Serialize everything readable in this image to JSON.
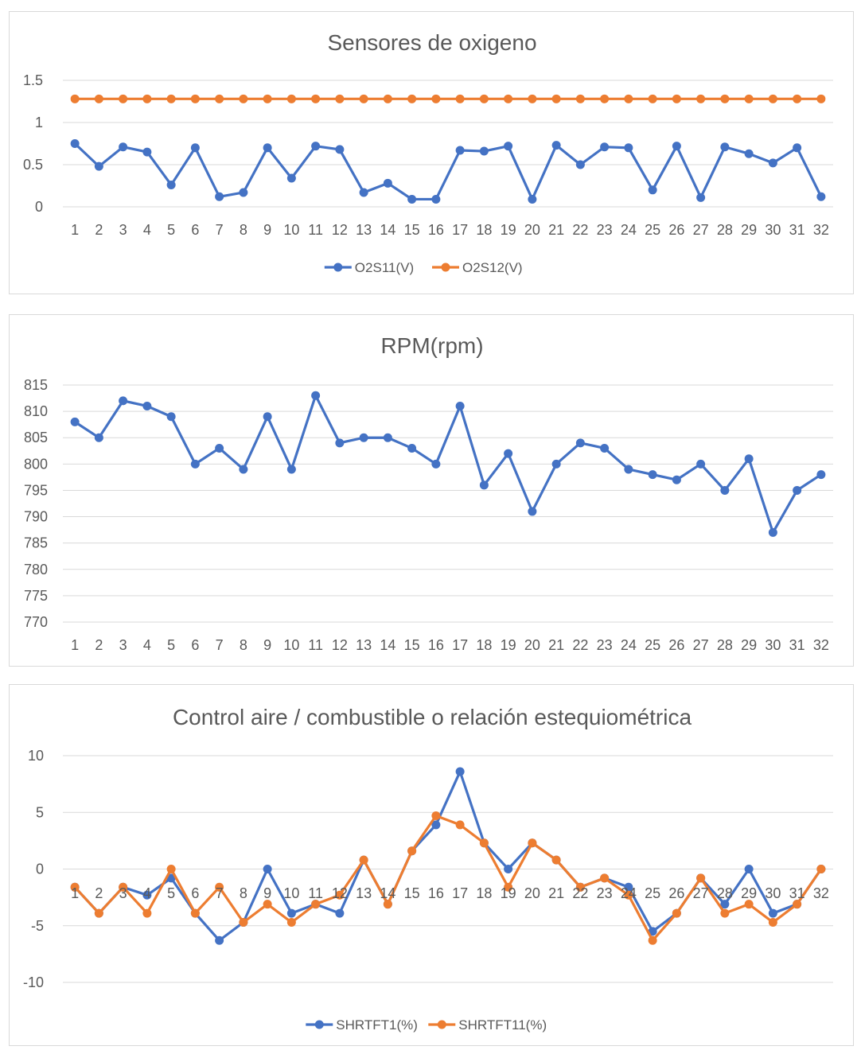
{
  "chart_data": [
    {
      "type": "line",
      "title": "Sensores de oxigeno",
      "categories": [
        "1",
        "2",
        "3",
        "4",
        "5",
        "6",
        "7",
        "8",
        "9",
        "10",
        "11",
        "12",
        "13",
        "14",
        "15",
        "16",
        "17",
        "18",
        "19",
        "20",
        "21",
        "22",
        "23",
        "24",
        "25",
        "26",
        "27",
        "28",
        "29",
        "30",
        "31",
        "32"
      ],
      "yticks": [
        "1.5",
        "1",
        "0.5",
        "0"
      ],
      "ylim": [
        0,
        1.5
      ],
      "grid": true,
      "legend": "bottom",
      "series": [
        {
          "name": "O2S11(V)",
          "color": "#4472c4",
          "values": [
            0.75,
            0.48,
            0.71,
            0.65,
            0.26,
            0.7,
            0.12,
            0.17,
            0.7,
            0.34,
            0.72,
            0.68,
            0.17,
            0.28,
            0.09,
            0.09,
            0.67,
            0.66,
            0.72,
            0.09,
            0.73,
            0.5,
            0.71,
            0.7,
            0.2,
            0.72,
            0.11,
            0.71,
            0.63,
            0.52,
            0.7,
            0.12
          ]
        },
        {
          "name": "O2S12(V)",
          "color": "#ed7d31",
          "values": [
            1.28,
            1.28,
            1.28,
            1.28,
            1.28,
            1.28,
            1.28,
            1.28,
            1.28,
            1.28,
            1.28,
            1.28,
            1.28,
            1.28,
            1.28,
            1.28,
            1.28,
            1.28,
            1.28,
            1.28,
            1.28,
            1.28,
            1.28,
            1.28,
            1.28,
            1.28,
            1.28,
            1.28,
            1.28,
            1.28,
            1.28,
            1.28
          ]
        }
      ]
    },
    {
      "type": "line",
      "title": "RPM(rpm)",
      "categories": [
        "1",
        "2",
        "3",
        "4",
        "5",
        "6",
        "7",
        "8",
        "9",
        "10",
        "11",
        "12",
        "13",
        "14",
        "15",
        "16",
        "17",
        "18",
        "19",
        "20",
        "21",
        "22",
        "23",
        "24",
        "25",
        "26",
        "27",
        "28",
        "29",
        "30",
        "31",
        "32"
      ],
      "yticks": [
        "815",
        "810",
        "805",
        "800",
        "795",
        "790",
        "785",
        "780",
        "775",
        "770"
      ],
      "ylim": [
        770,
        815
      ],
      "grid": true,
      "legend": "none",
      "series": [
        {
          "color": "#4472c4",
          "values": [
            808,
            805,
            812,
            811,
            809,
            800,
            803,
            799,
            809,
            799,
            813,
            804,
            805,
            805,
            803,
            800,
            811,
            796,
            802,
            791,
            800,
            804,
            803,
            799,
            798,
            797,
            800,
            795,
            801,
            787,
            795,
            798
          ]
        }
      ]
    },
    {
      "type": "line",
      "title": "Control aire / combustible o relación estequiométrica",
      "categories": [
        "1",
        "2",
        "3",
        "4",
        "5",
        "6",
        "7",
        "8",
        "9",
        "10",
        "11",
        "12",
        "13",
        "14",
        "15",
        "16",
        "17",
        "18",
        "19",
        "20",
        "21",
        "22",
        "23",
        "24",
        "25",
        "26",
        "27",
        "28",
        "29",
        "30",
        "31",
        "32"
      ],
      "yticks": [
        "10",
        "5",
        "0",
        "-5",
        "-10"
      ],
      "ylim": [
        -10,
        10
      ],
      "grid": true,
      "legend": "bottom",
      "series": [
        {
          "name": "SHRTFT1(%)",
          "color": "#4472c4",
          "values": [
            -1.6,
            -3.9,
            -1.6,
            -2.3,
            -0.8,
            -3.9,
            -6.3,
            -4.7,
            0.0,
            -3.9,
            -3.1,
            -3.9,
            0.8,
            -3.1,
            1.6,
            3.9,
            8.6,
            2.3,
            0.0,
            2.3,
            0.8,
            -1.6,
            -0.8,
            -1.6,
            -5.5,
            -3.9,
            -0.8,
            -3.1,
            0.0,
            -3.9,
            -3.1,
            0.0
          ]
        },
        {
          "name": "SHRTFT11(%)",
          "color": "#ed7d31",
          "values": [
            -1.6,
            -3.9,
            -1.6,
            -3.9,
            0.0,
            -3.9,
            -1.6,
            -4.7,
            -3.1,
            -4.7,
            -3.1,
            -2.3,
            0.8,
            -3.1,
            1.6,
            4.7,
            3.9,
            2.3,
            -1.6,
            2.3,
            0.8,
            -1.6,
            -0.8,
            -2.3,
            -6.3,
            -3.9,
            -0.8,
            -3.9,
            -3.1,
            -4.7,
            -3.1,
            0.0
          ]
        }
      ]
    }
  ]
}
